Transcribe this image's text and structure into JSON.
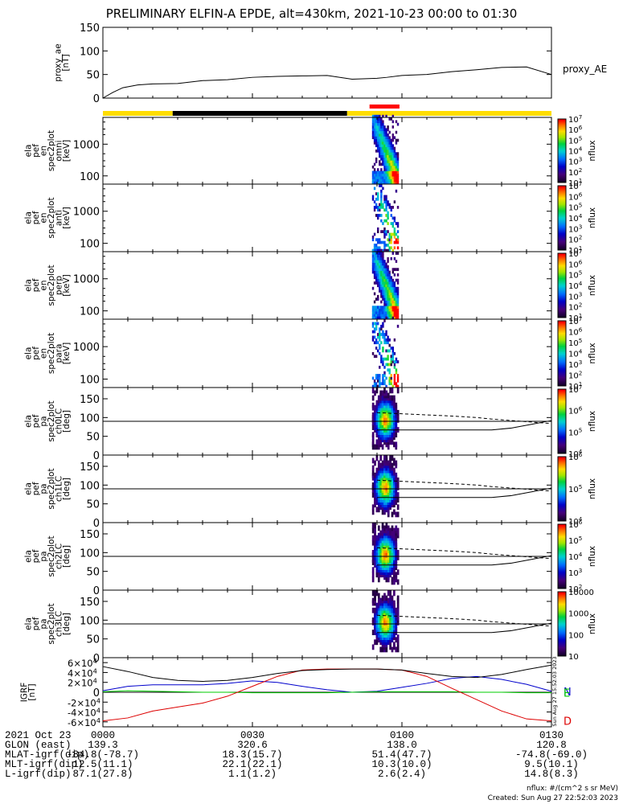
{
  "title": "PRELIMINARY ELFIN-A EPDE, alt=430km, 2021-10-23 00:00 to 01:30",
  "time_ticks": [
    "0000",
    "0030",
    "0100",
    "0130"
  ],
  "footer_rows": [
    {
      "label": "2021 Oct 23",
      "values": [
        "0000",
        "0030",
        "0100",
        "0130"
      ]
    },
    {
      "label": "GLON (east)",
      "values": [
        "139.3",
        "320.6",
        "138.0",
        "120.8"
      ]
    },
    {
      "label": "MLAT-igrf(dip)",
      "values": [
        "-84.8(-78.7)",
        "18.3(15.7)",
        "51.4(47.7)",
        "-74.8(-69.0)"
      ]
    },
    {
      "label": "MLT-igrf(dip)",
      "values": [
        "12.5(11.1)",
        "22.1(22.1)",
        "10.3(10.0)",
        "9.5(10.1)"
      ]
    },
    {
      "label": "L-igrf(dip)",
      "values": [
        "87.1(27.8)",
        "1.1(1.2)",
        "2.6(2.4)",
        "14.8(8.3)"
      ]
    }
  ],
  "note_units": "nflux: #/(cm^2 s sr MeV)",
  "note_created": "Created: Sun Aug 27 22:52:03 2023",
  "side_stamp": "Sun Aug 27 15:52:03 2023",
  "colorbar_label": "nflux",
  "colors": {
    "yellow": "#ffdd00",
    "black": "#000000",
    "red": "#ff0000",
    "igrf_n": "#0000cc",
    "igrf_e": "#00cc00",
    "igrf_d": "#dd0000"
  },
  "chart_data": [
    {
      "type": "line",
      "panel": "proxy_ae",
      "ylabel": [
        "proxy_ae",
        "[nT]"
      ],
      "legend": "proxy_AE",
      "ylim": [
        0,
        150
      ],
      "yticks": [
        0,
        50,
        100,
        150
      ],
      "x_minutes": [
        0,
        2,
        4,
        7,
        10,
        15,
        20,
        25,
        30,
        35,
        40,
        45,
        50,
        55,
        57,
        60,
        65,
        70,
        75,
        80,
        85,
        90
      ],
      "values": [
        0,
        12,
        22,
        28,
        30,
        31,
        37,
        39,
        44,
        46,
        47,
        48,
        40,
        42,
        44,
        48,
        50,
        56,
        60,
        65,
        66,
        50
      ]
    },
    {
      "type": "bar",
      "panel": "status_bar",
      "segments": [
        {
          "from_min": 0,
          "to_min": 14,
          "color": "yellow"
        },
        {
          "from_min": 14,
          "to_min": 49,
          "color": "black"
        },
        {
          "from_min": 49,
          "to_min": 90,
          "color": "yellow"
        }
      ],
      "marker": {
        "from_min": 53.5,
        "to_min": 59.5,
        "color": "red"
      }
    },
    {
      "type": "heatmap",
      "panel": "omni",
      "ylabel": [
        "ela",
        "pef",
        "en",
        "spec2plot",
        "omni",
        "[keV]"
      ],
      "yscale": "log",
      "yticks": [
        100,
        1000
      ],
      "colorbar": {
        "scale": "log",
        "ticks": [
          "10^1",
          "10^2",
          "10^3",
          "10^4",
          "10^5",
          "10^6",
          "10^7"
        ]
      },
      "time_range_min": [
        54,
        59
      ],
      "peak_energy_keV": 70
    },
    {
      "type": "heatmap",
      "panel": "anti",
      "ylabel": [
        "ela",
        "pef",
        "en",
        "spec2plot",
        "anti",
        "[keV]"
      ],
      "yscale": "log",
      "yticks": [
        100,
        1000
      ],
      "colorbar": {
        "scale": "log",
        "ticks": [
          "10^1",
          "10^2",
          "10^3",
          "10^4",
          "10^5",
          "10^6",
          "10^7"
        ]
      },
      "time_range_min": [
        54,
        59
      ],
      "peak_energy_keV": 70
    },
    {
      "type": "heatmap",
      "panel": "perp",
      "ylabel": [
        "ela",
        "pef",
        "en",
        "spec2plot",
        "perp",
        "[keV]"
      ],
      "yscale": "log",
      "yticks": [
        100,
        1000
      ],
      "colorbar": {
        "scale": "log",
        "ticks": [
          "10^1",
          "10^2",
          "10^3",
          "10^4",
          "10^5",
          "10^6",
          "10^7"
        ]
      },
      "time_range_min": [
        54,
        59
      ],
      "peak_energy_keV": 70
    },
    {
      "type": "heatmap",
      "panel": "para",
      "ylabel": [
        "ela",
        "pef",
        "en",
        "spec2plot",
        "para",
        "[keV]"
      ],
      "yscale": "log",
      "yticks": [
        100,
        1000
      ],
      "colorbar": {
        "scale": "log",
        "ticks": [
          "10^1",
          "10^2",
          "10^3",
          "10^4",
          "10^5",
          "10^6",
          "10^7"
        ]
      },
      "time_range_min": [
        54,
        59
      ],
      "peak_energy_keV": 70
    },
    {
      "type": "heatmap",
      "panel": "ch0LC",
      "ylabel": [
        "ela",
        "pef",
        "pa",
        "spec2plot",
        "ch0LC",
        "[deg]"
      ],
      "ylim": [
        0,
        180
      ],
      "yticks": [
        0,
        50,
        100,
        150
      ],
      "colorbar": {
        "scale": "log",
        "ticks": [
          "10^4",
          "10^5",
          "10^6",
          "10^7"
        ]
      },
      "time_range_min": [
        54,
        59
      ],
      "lines": {
        "solid_deg": 90,
        "loss_cone_deg": [
          67,
          67,
          67,
          67,
          67,
          67,
          72,
          82,
          92
        ],
        "dashed_deg": [
          113,
          110,
          107,
          104,
          100,
          96,
          92,
          88,
          84
        ],
        "x_minutes": [
          55,
          60,
          65,
          70,
          75,
          78,
          82,
          86,
          90
        ]
      }
    },
    {
      "type": "heatmap",
      "panel": "ch1LC",
      "ylabel": [
        "ela",
        "pef",
        "pa",
        "spec2plot",
        "ch1LC",
        "[deg]"
      ],
      "ylim": [
        0,
        180
      ],
      "yticks": [
        0,
        50,
        100,
        150
      ],
      "colorbar": {
        "scale": "log",
        "ticks": [
          "10^4",
          "10^5",
          "10^6"
        ]
      },
      "time_range_min": [
        54,
        59
      ],
      "lines": {
        "solid_deg": 90,
        "loss_cone_deg": [
          67,
          67,
          67,
          67,
          67,
          67,
          72,
          82,
          92
        ],
        "dashed_deg": [
          113,
          110,
          107,
          104,
          100,
          96,
          92,
          88,
          84
        ],
        "x_minutes": [
          55,
          60,
          65,
          70,
          75,
          78,
          82,
          86,
          90
        ]
      }
    },
    {
      "type": "heatmap",
      "panel": "ch2LC",
      "ylabel": [
        "ela",
        "pef",
        "pa",
        "spec2plot",
        "ch2LC",
        "[deg]"
      ],
      "ylim": [
        0,
        180
      ],
      "yticks": [
        0,
        50,
        100,
        150
      ],
      "colorbar": {
        "scale": "log",
        "ticks": [
          "10^2",
          "10^3",
          "10^4",
          "10^5",
          "10^6"
        ]
      },
      "time_range_min": [
        54,
        59
      ],
      "lines": {
        "solid_deg": 90,
        "loss_cone_deg": [
          67,
          67,
          67,
          67,
          67,
          67,
          72,
          82,
          92
        ],
        "dashed_deg": [
          113,
          110,
          107,
          104,
          100,
          96,
          92,
          88,
          84
        ],
        "x_minutes": [
          55,
          60,
          65,
          70,
          75,
          78,
          82,
          86,
          90
        ]
      }
    },
    {
      "type": "heatmap",
      "panel": "ch3LC",
      "ylabel": [
        "ela",
        "pef",
        "pa",
        "spec2plot",
        "ch3LC",
        "[deg]"
      ],
      "ylim": [
        0,
        180
      ],
      "yticks": [
        0,
        50,
        100,
        150
      ],
      "colorbar": {
        "scale": "log",
        "ticks": [
          "10",
          "100",
          "1000",
          "10000"
        ]
      },
      "time_range_min": [
        54,
        59
      ],
      "lines": {
        "solid_deg": 90,
        "loss_cone_deg": [
          67,
          67,
          67,
          67,
          67,
          67,
          72,
          82,
          92
        ],
        "dashed_deg": [
          113,
          110,
          107,
          104,
          100,
          96,
          92,
          88,
          84
        ],
        "x_minutes": [
          55,
          60,
          65,
          70,
          75,
          78,
          82,
          86,
          90
        ]
      }
    },
    {
      "type": "line",
      "panel": "igrf",
      "ylabel": [
        "IGRF",
        "[nT]"
      ],
      "ylim": [
        -70000,
        70000
      ],
      "yticks": [
        -60000,
        -40000,
        -20000,
        0,
        20000,
        40000,
        60000
      ],
      "ytick_labels": [
        "-6×10^4",
        "-4×10^4",
        "-2×10^4",
        "0",
        "2×10^4",
        "4×10^4",
        "6×10^4"
      ],
      "x_minutes": [
        0,
        5,
        10,
        15,
        20,
        25,
        30,
        35,
        40,
        45,
        50,
        55,
        60,
        65,
        70,
        75,
        80,
        85,
        90
      ],
      "series": [
        {
          "name": "N",
          "color": "igrf_n",
          "values": [
            3000,
            12000,
            15000,
            15000,
            15000,
            18000,
            23000,
            20000,
            12000,
            5000,
            0,
            2000,
            10000,
            18000,
            28000,
            32000,
            26000,
            16000,
            2000
          ]
        },
        {
          "name": "E",
          "color": "igrf_e",
          "values": [
            1000,
            3000,
            2000,
            1000,
            0,
            0,
            -1000,
            -1000,
            -1000,
            -1000,
            0,
            1000,
            1000,
            1000,
            1000,
            0,
            0,
            -1000,
            -1000
          ]
        },
        {
          "name": "D",
          "color": "igrf_d",
          "values": [
            -58000,
            -52000,
            -38000,
            -30000,
            -22000,
            -8000,
            12000,
            32000,
            45000,
            47000,
            47000,
            47000,
            45000,
            32000,
            8000,
            -15000,
            -38000,
            -54000,
            -58000
          ]
        },
        {
          "name": "",
          "color": "black",
          "values": [
            52000,
            42000,
            30000,
            24000,
            22000,
            24000,
            30000,
            38000,
            44000,
            46000,
            47000,
            47000,
            45000,
            38000,
            32000,
            30000,
            36000,
            46000,
            55000
          ]
        }
      ]
    }
  ]
}
